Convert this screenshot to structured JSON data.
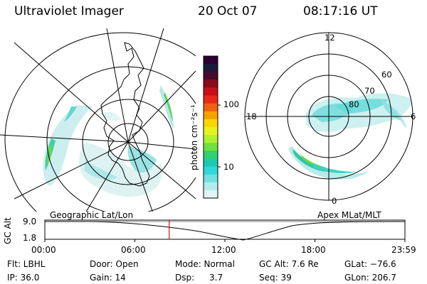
{
  "header": {
    "instrument": "Ultraviolet Imager",
    "date": "20 Oct 07",
    "time": "08:17:16 UT"
  },
  "colorbar": {
    "unit_label": "photon cm⁻²s⁻¹",
    "ticks": [
      "100",
      "10"
    ],
    "colors": [
      "#2a0030",
      "#1a1a3a",
      "#4a0a2a",
      "#8a0a20",
      "#c81018",
      "#e82818",
      "#f06010",
      "#f8a000",
      "#f8d800",
      "#e8f020",
      "#b0f030",
      "#70e040",
      "#30d070",
      "#20c8b0",
      "#30d8d8",
      "#70e0e0",
      "#b0ecec",
      "#e0f4f4"
    ]
  },
  "maps": {
    "left_caption": "Geographic Lat/Lon",
    "right_caption": "Apex  MLat/MLT",
    "right_labels": {
      "mlt_12": "12",
      "mlt_6": "6",
      "mlt_18": "18",
      "mlt_0": "0",
      "mlat_60": "60",
      "mlat_70": "70",
      "mlat_80": "80"
    }
  },
  "altitude_strip": {
    "axis_label": "GC Alt",
    "y_max": "9.0",
    "y_min": "1.8",
    "time_ticks": [
      "00:00",
      "06:00",
      "12:00",
      "18:00",
      "23:59"
    ],
    "current_time_fraction": 0.3453
  },
  "status": {
    "row1": {
      "filter": "Flt: LBHL",
      "door": "Door: Open",
      "mode": "Mode: Normal",
      "gc_alt": "GC Alt: 7.6 Re",
      "glat": "GLat: −76.6"
    },
    "row2": {
      "ip": "IP: 36.0",
      "gain": "Gain: 14",
      "dsp_label": "Dsp:",
      "dsp_value": "3.7",
      "seq": "Seq: 39",
      "glon": "GLon: 206.7"
    }
  }
}
